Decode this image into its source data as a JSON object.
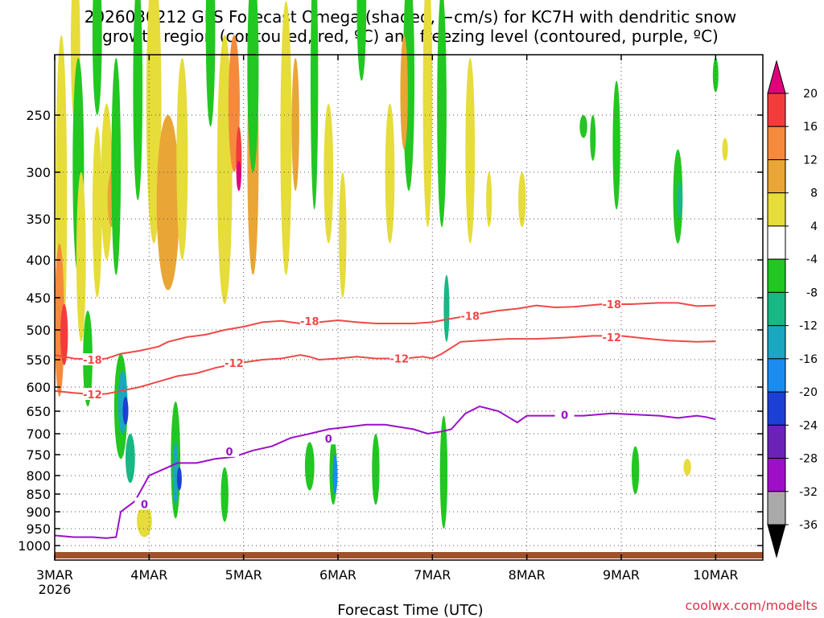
{
  "chart_data": {
    "type": "heatmap",
    "title_line1": "2026030212 GFS Forecast Omega (shaded, −cm/s) for KC7H with dendritic snow",
    "title_line2": "growth region (contoured, red, ºC) and freezing level (contoured, purple, ºC)",
    "xlabel": "Forecast Time (UTC)",
    "credit": "coolwx.com/modelts",
    "x_ticks": [
      {
        "t": 2.5,
        "label": "3MAR",
        "sub": "2026"
      },
      {
        "t": 3.5,
        "label": "4MAR"
      },
      {
        "t": 4.5,
        "label": "5MAR"
      },
      {
        "t": 5.5,
        "label": "6MAR"
      },
      {
        "t": 6.5,
        "label": "7MAR"
      },
      {
        "t": 7.5,
        "label": "8MAR"
      },
      {
        "t": 8.5,
        "label": "9MAR"
      },
      {
        "t": 9.5,
        "label": "10MAR"
      }
    ],
    "x_range": [
      2.5,
      10.0
    ],
    "y_ticks": [
      250,
      300,
      350,
      400,
      450,
      500,
      550,
      600,
      650,
      700,
      750,
      800,
      850,
      900,
      950,
      1000
    ],
    "y_range_hpa": [
      1030,
      200
    ],
    "grid": true,
    "colorbar": {
      "labels": [
        "20",
        "16",
        "12",
        "8",
        "4",
        "-4",
        "-8",
        "-12",
        "-16",
        "-20",
        "-24",
        "-28",
        "-32",
        "-36"
      ],
      "bins": [
        {
          "range": ">20",
          "color": "#e0007a"
        },
        {
          "range": "16 to 20",
          "color": "#f23c3c"
        },
        {
          "range": "12 to 16",
          "color": "#f58a3c"
        },
        {
          "range": "8 to 12",
          "color": "#e9a535"
        },
        {
          "range": "4 to 8",
          "color": "#e6dc3a"
        },
        {
          "range": "-4 to 4",
          "color": "#ffffff"
        },
        {
          "range": "-8 to -4",
          "color": "#22c722"
        },
        {
          "range": "-12 to -8",
          "color": "#18b884"
        },
        {
          "range": "-16 to -12",
          "color": "#1aa7c0"
        },
        {
          "range": "-20 to -16",
          "color": "#1a8cf0"
        },
        {
          "range": "-24 to -20",
          "color": "#1c3fd6"
        },
        {
          "range": "-28 to -24",
          "color": "#6b22b8"
        },
        {
          "range": "-32 to -28",
          "color": "#a00fc8"
        },
        {
          "range": "-36 to -32",
          "color": "#a9a9a9"
        },
        {
          "range": "<-36",
          "color": "#000000"
        }
      ]
    },
    "series": [
      {
        "name": "-18",
        "color": "#f04848",
        "points": [
          [
            2.5,
            542
          ],
          [
            2.7,
            548
          ],
          [
            2.9,
            550
          ],
          [
            3.05,
            548
          ],
          [
            3.2,
            540
          ],
          [
            3.4,
            535
          ],
          [
            3.6,
            528
          ],
          [
            3.7,
            520
          ],
          [
            3.9,
            512
          ],
          [
            4.1,
            508
          ],
          [
            4.3,
            500
          ],
          [
            4.5,
            495
          ],
          [
            4.7,
            488
          ],
          [
            4.9,
            486
          ],
          [
            5.1,
            490
          ],
          [
            5.3,
            488
          ],
          [
            5.5,
            485
          ],
          [
            5.7,
            488
          ],
          [
            5.9,
            490
          ],
          [
            6.1,
            490
          ],
          [
            6.3,
            490
          ],
          [
            6.5,
            488
          ],
          [
            6.6,
            485
          ],
          [
            6.8,
            480
          ],
          [
            7.0,
            475
          ],
          [
            7.2,
            470
          ],
          [
            7.4,
            467
          ],
          [
            7.6,
            462
          ],
          [
            7.8,
            465
          ],
          [
            8.0,
            464
          ],
          [
            8.3,
            460
          ],
          [
            8.6,
            460
          ],
          [
            8.9,
            458
          ],
          [
            9.1,
            458
          ],
          [
            9.3,
            463
          ],
          [
            9.5,
            462
          ]
        ],
        "label_at": [
          [
            2.9,
            550
          ],
          [
            5.2,
            486
          ],
          [
            6.9,
            478
          ],
          [
            8.4,
            460
          ]
        ]
      },
      {
        "name": "-12",
        "color": "#f04848",
        "points": [
          [
            2.5,
            608
          ],
          [
            2.7,
            612
          ],
          [
            2.9,
            615
          ],
          [
            3.05,
            614
          ],
          [
            3.2,
            608
          ],
          [
            3.4,
            600
          ],
          [
            3.6,
            590
          ],
          [
            3.8,
            580
          ],
          [
            4.0,
            575
          ],
          [
            4.2,
            565
          ],
          [
            4.4,
            558
          ],
          [
            4.5,
            555
          ],
          [
            4.7,
            550
          ],
          [
            4.9,
            548
          ],
          [
            5.1,
            542
          ],
          [
            5.2,
            545
          ],
          [
            5.3,
            550
          ],
          [
            5.5,
            548
          ],
          [
            5.7,
            545
          ],
          [
            5.9,
            548
          ],
          [
            6.0,
            548
          ],
          [
            6.2,
            548
          ],
          [
            6.4,
            545
          ],
          [
            6.5,
            548
          ],
          [
            6.6,
            540
          ],
          [
            6.8,
            520
          ],
          [
            7.0,
            518
          ],
          [
            7.3,
            515
          ],
          [
            7.6,
            515
          ],
          [
            7.9,
            513
          ],
          [
            8.2,
            510
          ],
          [
            8.5,
            510
          ],
          [
            8.8,
            515
          ],
          [
            9.0,
            518
          ],
          [
            9.3,
            520
          ],
          [
            9.5,
            519
          ]
        ],
        "label_at": [
          [
            2.9,
            615
          ],
          [
            4.4,
            556
          ],
          [
            6.15,
            548
          ],
          [
            8.4,
            512
          ]
        ]
      },
      {
        "name": "0",
        "color": "#9a10c8",
        "points": [
          [
            2.5,
            970
          ],
          [
            2.7,
            975
          ],
          [
            2.9,
            975
          ],
          [
            3.05,
            978
          ],
          [
            3.15,
            975
          ],
          [
            3.2,
            900
          ],
          [
            3.35,
            870
          ],
          [
            3.5,
            800
          ],
          [
            3.6,
            790
          ],
          [
            3.8,
            770
          ],
          [
            4.0,
            770
          ],
          [
            4.2,
            760
          ],
          [
            4.4,
            755
          ],
          [
            4.6,
            740
          ],
          [
            4.8,
            730
          ],
          [
            5.0,
            710
          ],
          [
            5.2,
            700
          ],
          [
            5.4,
            690
          ],
          [
            5.6,
            685
          ],
          [
            5.8,
            680
          ],
          [
            6.0,
            680
          ],
          [
            6.15,
            685
          ],
          [
            6.3,
            690
          ],
          [
            6.45,
            700
          ],
          [
            6.6,
            695
          ],
          [
            6.7,
            690
          ],
          [
            6.85,
            655
          ],
          [
            7.0,
            640
          ],
          [
            7.2,
            650
          ],
          [
            7.4,
            675
          ],
          [
            7.5,
            660
          ],
          [
            7.8,
            660
          ],
          [
            8.1,
            660
          ],
          [
            8.4,
            655
          ],
          [
            8.7,
            658
          ],
          [
            8.9,
            660
          ],
          [
            9.1,
            665
          ],
          [
            9.3,
            660
          ],
          [
            9.4,
            663
          ],
          [
            9.5,
            668
          ]
        ],
        "label_at": [
          [
            3.45,
            878
          ],
          [
            4.35,
            742
          ],
          [
            5.4,
            712
          ],
          [
            7.9,
            658
          ]
        ]
      }
    ]
  }
}
